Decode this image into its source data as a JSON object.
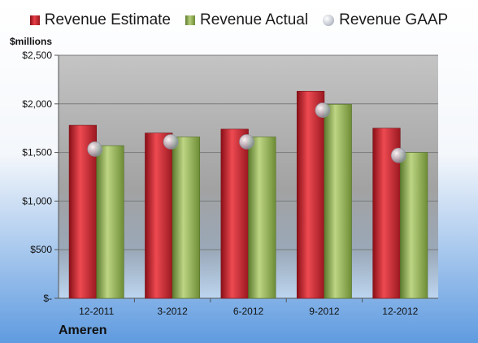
{
  "chart_data": {
    "type": "bar",
    "unit_label": "$millions",
    "company": "Ameren",
    "categories": [
      "12-2011",
      "3-2012",
      "6-2012",
      "9-2012",
      "12-2012"
    ],
    "series": [
      {
        "name": "Revenue Estimate",
        "kind": "bar",
        "color": "#d42a32",
        "values": [
          1780,
          1700,
          1740,
          2130,
          1750
        ]
      },
      {
        "name": "Revenue Actual",
        "kind": "bar",
        "color": "#9bbb59",
        "values": [
          1570,
          1660,
          1660,
          1995,
          1500
        ]
      },
      {
        "name": "Revenue GAAP",
        "kind": "marker",
        "color": "#c0c4cc",
        "values": [
          1535,
          1610,
          1610,
          1935,
          1470
        ]
      }
    ],
    "ylim": [
      0,
      2500
    ],
    "yticks": [
      0,
      500,
      1000,
      1500,
      2000,
      2500
    ],
    "ytick_labels": [
      "$-",
      "$500",
      "$1,000",
      "$1,500",
      "$2,000",
      "$2,500"
    ],
    "grid": true,
    "legend_position": "top"
  },
  "colors": {
    "background_top": "#ffffff",
    "background_bottom": "#5f9be0",
    "plot_top": "#c4c4c4",
    "plot_bottom": "#bcd5ef"
  }
}
